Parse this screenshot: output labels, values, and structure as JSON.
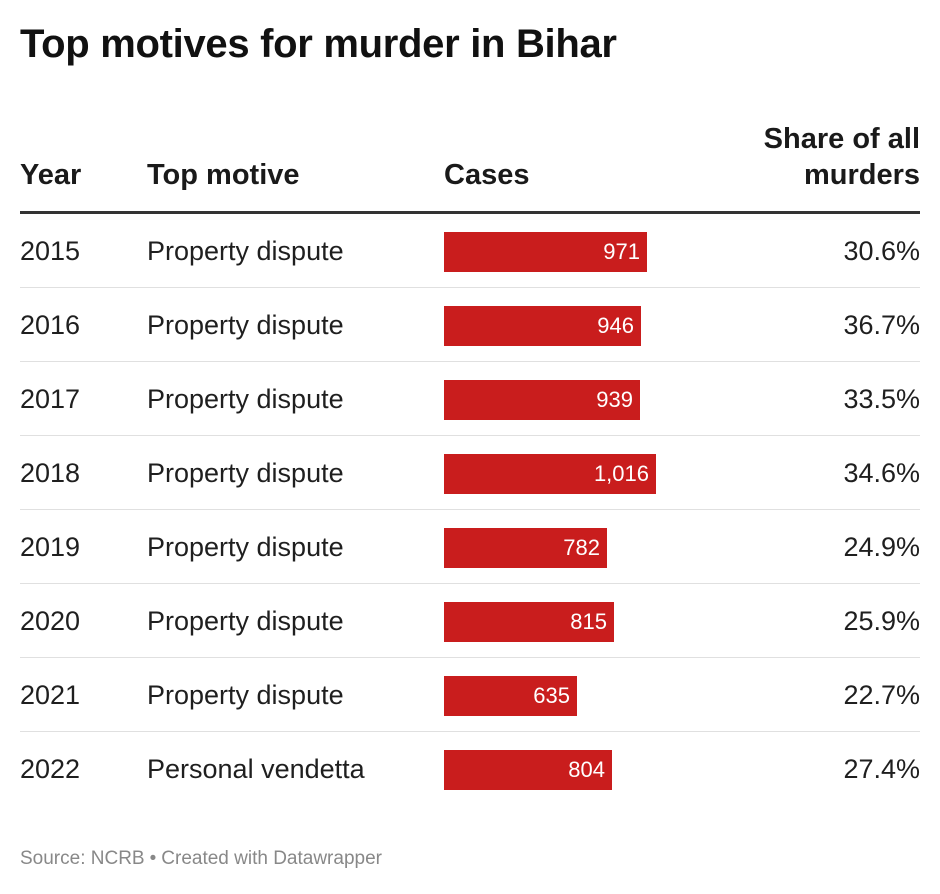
{
  "title": "Top motives for murder in Bihar",
  "columns": {
    "year": "Year",
    "motive": "Top motive",
    "cases": "Cases",
    "share_line1": "Share of all",
    "share_line2": "murders"
  },
  "chart_data": {
    "type": "table",
    "title": "Top motives for murder in Bihar",
    "columns": [
      "Year",
      "Top motive",
      "Cases",
      "Share of all murders"
    ],
    "bar_max": 1016,
    "bar_color": "#c91d1d",
    "rows": [
      {
        "year": "2015",
        "motive": "Property dispute",
        "cases": 971,
        "cases_label": "971",
        "share": "30.6%"
      },
      {
        "year": "2016",
        "motive": "Property dispute",
        "cases": 946,
        "cases_label": "946",
        "share": "36.7%"
      },
      {
        "year": "2017",
        "motive": "Property dispute",
        "cases": 939,
        "cases_label": "939",
        "share": "33.5%"
      },
      {
        "year": "2018",
        "motive": "Property dispute",
        "cases": 1016,
        "cases_label": "1,016",
        "share": "34.6%"
      },
      {
        "year": "2019",
        "motive": "Property dispute",
        "cases": 782,
        "cases_label": "782",
        "share": "24.9%"
      },
      {
        "year": "2020",
        "motive": "Property dispute",
        "cases": 815,
        "cases_label": "815",
        "share": "25.9%"
      },
      {
        "year": "2021",
        "motive": "Property dispute",
        "cases": 635,
        "cases_label": "635",
        "share": "22.7%"
      },
      {
        "year": "2022",
        "motive": "Personal vendetta",
        "cases": 804,
        "cases_label": "804",
        "share": "27.4%"
      }
    ]
  },
  "footer": {
    "source": "Source: NCRB",
    "separator": "•",
    "credit": "Created with Datawrapper"
  }
}
